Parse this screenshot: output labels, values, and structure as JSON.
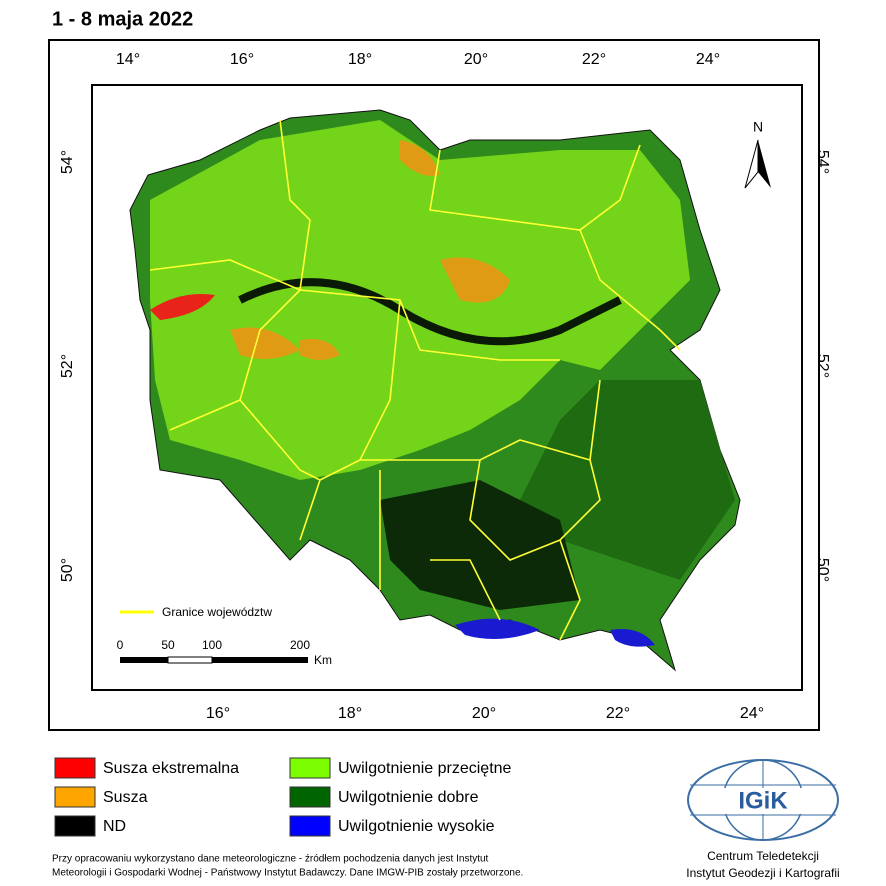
{
  "title": "1 - 8 maja 2022",
  "map": {
    "top_labels": [
      "14°",
      "16°",
      "18°",
      "20°",
      "22°",
      "24°"
    ],
    "bottom_labels": [
      "16°",
      "18°",
      "20°",
      "22°",
      "24°"
    ],
    "left_labels": [
      "54°",
      "52°",
      "50°"
    ],
    "right_labels": [
      "54°",
      "52°",
      "50°"
    ],
    "north": "N",
    "boundary_legend": "Granice województw",
    "scale_bar": {
      "labels": [
        "0",
        "50",
        "100",
        "200"
      ],
      "unit": "Km"
    }
  },
  "legend": {
    "items": [
      {
        "label": "Susza ekstremalna",
        "color": "#ff0000"
      },
      {
        "label": "Susza",
        "color": "#ffa500"
      },
      {
        "label": "ND",
        "color": "#000000"
      },
      {
        "label": "Uwilgotnienie przeciętne",
        "color": "#7cfc00"
      },
      {
        "label": "Uwilgotnienie dobre",
        "color": "#006400"
      },
      {
        "label": "Uwilgotnienie wysokie",
        "color": "#0000ff"
      }
    ]
  },
  "footer": {
    "lines": [
      "Przy opracowaniu wykorzystano dane meteorologiczne - źródłem pochodzenia danych jest Instytut",
      "Meteorologii i Gospodarki Wodnej - Państwowy Instytut Badawczy. Dane IMGW-PIB zostały przetworzone."
    ]
  },
  "logo": {
    "text": "IGiK",
    "lines": [
      "Centrum Teledetekcji",
      "Instytut Geodezji i Kartografii"
    ]
  }
}
